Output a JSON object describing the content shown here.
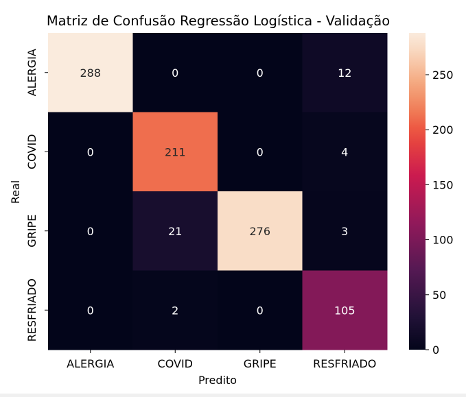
{
  "chart_data": {
    "type": "heatmap",
    "title": "Matriz de Confusão Regressão Logística - Validação",
    "xlabel": "Predito",
    "ylabel": "Real",
    "x_categories": [
      "ALERGIA",
      "COVID",
      "GRIPE",
      "RESFRIADO"
    ],
    "y_categories": [
      "ALERGIA",
      "COVID",
      "GRIPE",
      "RESFRIADO"
    ],
    "matrix": [
      [
        288,
        0,
        0,
        12
      ],
      [
        0,
        211,
        0,
        4
      ],
      [
        0,
        21,
        276,
        3
      ],
      [
        0,
        2,
        0,
        105
      ]
    ],
    "colorbar": {
      "min": 0,
      "max": 288,
      "ticks": [
        0,
        50,
        100,
        150,
        200,
        250
      ],
      "colormap": "rocket"
    }
  }
}
